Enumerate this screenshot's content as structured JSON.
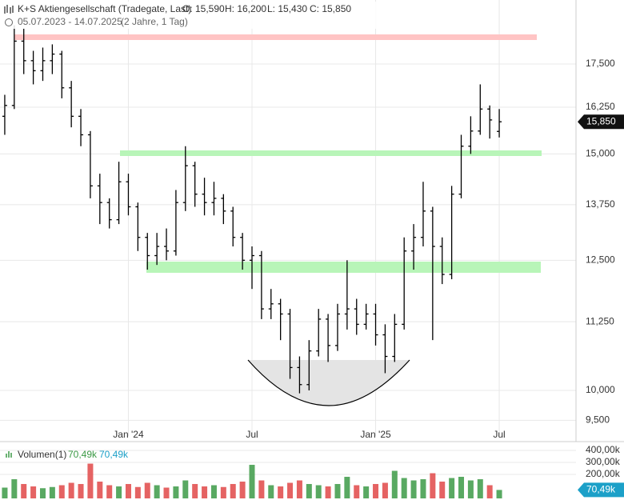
{
  "chart_data": [
    {
      "type": "ohlc",
      "title": "K+S Aktiengesellschaft (Tradegate, Last)",
      "header_stats": [
        "O: 15,590",
        "H: 16,200",
        "L: 15,430",
        "C: 15,850"
      ],
      "date_range": "05.07.2023 - 14.07.2025",
      "period": "(2 Jahre, 1 Tag)",
      "last_label": "15,850",
      "color": "#000000",
      "log_scale": true,
      "grid": true,
      "categories": [
        null,
        null,
        null,
        null,
        null,
        null,
        null,
        null,
        null,
        null,
        null,
        null,
        null,
        "Jan '24",
        null,
        null,
        null,
        null,
        null,
        null,
        null,
        null,
        null,
        null,
        null,
        null,
        "Jul",
        null,
        null,
        null,
        null,
        null,
        null,
        null,
        null,
        null,
        null,
        null,
        null,
        "Jan '25",
        null,
        null,
        null,
        null,
        null,
        null,
        null,
        null,
        null,
        null,
        null,
        null,
        "Jul"
      ],
      "open": [
        16000,
        16300,
        18200,
        17600,
        17300,
        17600,
        17800,
        16800,
        16000,
        15500,
        14200,
        13800,
        13400,
        14300,
        13700,
        13000,
        12600,
        12800,
        12700,
        13800,
        14700,
        14000,
        13800,
        13900,
        13600,
        13000,
        12500,
        12600,
        11500,
        11600,
        11400,
        10400,
        10100,
        10700,
        11300,
        10800,
        11400,
        11500,
        11200,
        11400,
        11000,
        10600,
        11200,
        12700,
        13000,
        13600,
        12800,
        12200,
        14000,
        15200,
        15600,
        16200,
        15590
      ],
      "high": [
        16600,
        18700,
        18600,
        17900,
        18000,
        18100,
        17900,
        17000,
        16200,
        15600,
        14500,
        13900,
        14800,
        14500,
        13800,
        13100,
        13100,
        13200,
        14100,
        15200,
        14800,
        14400,
        14300,
        14000,
        13700,
        13100,
        12800,
        12700,
        11900,
        11700,
        11500,
        10600,
        10900,
        11500,
        11400,
        11600,
        12500,
        11700,
        11600,
        11600,
        11200,
        11400,
        13000,
        13300,
        14300,
        13700,
        13000,
        14200,
        15500,
        16000,
        16900,
        16300,
        16200
      ],
      "low": [
        15500,
        16200,
        17200,
        16900,
        17000,
        17200,
        16500,
        15700,
        15200,
        13900,
        13300,
        13200,
        13300,
        13500,
        12700,
        12300,
        12400,
        12500,
        12600,
        13600,
        13700,
        13500,
        13500,
        13300,
        12800,
        12300,
        11900,
        11300,
        11300,
        10900,
        10200,
        9950,
        10000,
        10600,
        10500,
        10700,
        11100,
        11000,
        11100,
        10800,
        10300,
        10500,
        11100,
        12300,
        12800,
        10900,
        12000,
        12100,
        13900,
        15000,
        15500,
        15400,
        15430
      ],
      "close": [
        16300,
        18200,
        17600,
        17300,
        17600,
        17800,
        16800,
        16000,
        15500,
        14200,
        13800,
        13400,
        14300,
        13700,
        13000,
        12600,
        12800,
        12700,
        13800,
        14700,
        14000,
        13800,
        13900,
        13600,
        13000,
        12500,
        12600,
        11500,
        11600,
        11400,
        10400,
        10100,
        10700,
        11300,
        10800,
        11400,
        11500,
        11200,
        11400,
        11000,
        10600,
        11200,
        12700,
        13000,
        13600,
        12800,
        12200,
        14000,
        15200,
        15600,
        16200,
        15900,
        15850
      ],
      "ylim": [
        9248,
        19530
      ],
      "yticks": [
        {
          "value": 9500,
          "label": "9,500"
        },
        {
          "value": 10000,
          "label": "10,000"
        },
        {
          "value": 11250,
          "label": "11,250"
        },
        {
          "value": 12500,
          "label": "12,500"
        },
        {
          "value": 13750,
          "label": "13,750"
        },
        {
          "value": 15000,
          "label": "15,000"
        },
        {
          "value": 16250,
          "label": "16,250"
        },
        {
          "value": 17500,
          "label": "17,500"
        }
      ]
    },
    {
      "type": "bar",
      "name": "Volumen(1)",
      "legend_values": [
        "70,49k",
        "70,49k"
      ],
      "last_label": "70,49k",
      "up_color": "#3c9a46",
      "down_color": "#e04848",
      "values": [
        90000,
        160000,
        120000,
        100000,
        85000,
        95000,
        110000,
        130000,
        120000,
        290000,
        140000,
        110000,
        100000,
        120000,
        95000,
        130000,
        110000,
        90000,
        100000,
        150000,
        120000,
        100000,
        110000,
        95000,
        120000,
        140000,
        280000,
        150000,
        110000,
        100000,
        130000,
        150000,
        120000,
        110000,
        100000,
        120000,
        180000,
        110000,
        100000,
        120000,
        130000,
        230000,
        170000,
        150000,
        160000,
        210000,
        140000,
        170000,
        180000,
        150000,
        160000,
        110000,
        70490
      ],
      "ylim": [
        0,
        447000
      ],
      "yticks": [
        {
          "value": 200000,
          "label": "200,00k"
        },
        {
          "value": 300000,
          "label": "300,00k"
        },
        {
          "value": 400000,
          "label": "400,00k"
        }
      ]
    }
  ]
}
